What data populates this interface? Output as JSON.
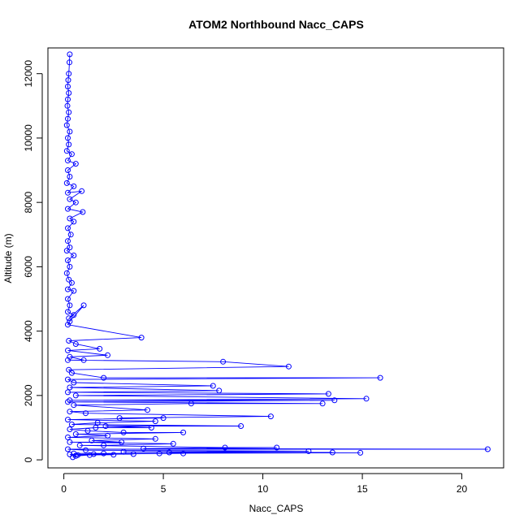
{
  "chart_data": {
    "type": "line",
    "title": "ATOM2 Northbound Nacc_CAPS",
    "xlabel": "Nacc_CAPS",
    "ylabel": "Altitude (m)",
    "xlim": [
      -0.8,
      22.1
    ],
    "ylim": [
      -250,
      12800
    ],
    "xticks": [
      0,
      5,
      10,
      15,
      20
    ],
    "yticks": [
      0,
      2000,
      4000,
      6000,
      8000,
      10000,
      12000
    ],
    "grid": false,
    "legend": "none",
    "color": "#0000ff",
    "series": [
      {
        "marker": "open-circle",
        "points": [
          [
            0.3,
            12600
          ],
          [
            0.28,
            12350
          ],
          [
            0.25,
            12000
          ],
          [
            0.22,
            11800
          ],
          [
            0.2,
            11600
          ],
          [
            0.25,
            11400
          ],
          [
            0.2,
            11200
          ],
          [
            0.18,
            11000
          ],
          [
            0.25,
            10800
          ],
          [
            0.2,
            10600
          ],
          [
            0.15,
            10400
          ],
          [
            0.3,
            10200
          ],
          [
            0.2,
            10000
          ],
          [
            0.25,
            9800
          ],
          [
            0.15,
            9600
          ],
          [
            0.4,
            9500
          ],
          [
            0.2,
            9300
          ],
          [
            0.6,
            9200
          ],
          [
            0.2,
            9000
          ],
          [
            0.3,
            8800
          ],
          [
            0.15,
            8600
          ],
          [
            0.5,
            8500
          ],
          [
            0.2,
            8300
          ],
          [
            0.9,
            8350
          ],
          [
            0.3,
            8100
          ],
          [
            0.6,
            8000
          ],
          [
            0.2,
            7800
          ],
          [
            0.95,
            7700
          ],
          [
            0.3,
            7500
          ],
          [
            0.5,
            7400
          ],
          [
            0.2,
            7200
          ],
          [
            0.35,
            7000
          ],
          [
            0.2,
            6800
          ],
          [
            0.3,
            6600
          ],
          [
            0.15,
            6500
          ],
          [
            0.5,
            6350
          ],
          [
            0.2,
            6200
          ],
          [
            0.3,
            6000
          ],
          [
            0.15,
            5800
          ],
          [
            0.25,
            5600
          ],
          [
            0.4,
            5500
          ],
          [
            0.2,
            5300
          ],
          [
            0.5,
            5250
          ],
          [
            0.2,
            5000
          ],
          [
            0.3,
            4800
          ],
          [
            0.2,
            4600
          ],
          [
            0.5,
            4500
          ],
          [
            0.25,
            4400
          ],
          [
            1.0,
            4800
          ],
          [
            0.3,
            4300
          ],
          [
            0.2,
            4200
          ],
          [
            3.9,
            3800
          ],
          [
            0.25,
            3700
          ],
          [
            0.6,
            3600
          ],
          [
            1.8,
            3450
          ],
          [
            0.2,
            3400
          ],
          [
            2.2,
            3250
          ],
          [
            0.3,
            3200
          ],
          [
            1.0,
            3100
          ],
          [
            0.2,
            3100
          ],
          [
            8.0,
            3050
          ],
          [
            11.3,
            2900
          ],
          [
            0.25,
            2800
          ],
          [
            0.4,
            2700
          ],
          [
            2.0,
            2550
          ],
          [
            15.9,
            2550
          ],
          [
            0.2,
            2500
          ],
          [
            0.5,
            2400
          ],
          [
            7.5,
            2300
          ],
          [
            0.3,
            2250
          ],
          [
            7.8,
            2150
          ],
          [
            0.2,
            2100
          ],
          [
            13.3,
            2050
          ],
          [
            0.6,
            2000
          ],
          [
            15.2,
            1900
          ],
          [
            0.3,
            1850
          ],
          [
            13.6,
            1850
          ],
          [
            0.2,
            1800
          ],
          [
            13.0,
            1750
          ],
          [
            6.4,
            1750
          ],
          [
            0.5,
            1700
          ],
          [
            4.2,
            1550
          ],
          [
            0.3,
            1500
          ],
          [
            1.1,
            1450
          ],
          [
            10.4,
            1350
          ],
          [
            2.8,
            1300
          ],
          [
            5.0,
            1300
          ],
          [
            0.2,
            1250
          ],
          [
            4.6,
            1200
          ],
          [
            1.7,
            1150
          ],
          [
            0.4,
            1100
          ],
          [
            8.9,
            1050
          ],
          [
            2.1,
            1050
          ],
          [
            4.4,
            1000
          ],
          [
            1.6,
            1000
          ],
          [
            0.3,
            950
          ],
          [
            1.2,
            900
          ],
          [
            3.0,
            850
          ],
          [
            6.0,
            850
          ],
          [
            0.6,
            800
          ],
          [
            2.2,
            750
          ],
          [
            0.2,
            700
          ],
          [
            4.6,
            650
          ],
          [
            1.4,
            600
          ],
          [
            2.9,
            550
          ],
          [
            0.3,
            550
          ],
          [
            5.5,
            500
          ],
          [
            2.0,
            450
          ],
          [
            0.8,
            450
          ],
          [
            8.1,
            380
          ],
          [
            10.7,
            380
          ],
          [
            4.0,
            350
          ],
          [
            21.3,
            330
          ],
          [
            0.2,
            330
          ],
          [
            1.1,
            300
          ],
          [
            12.3,
            270
          ],
          [
            3.0,
            250
          ],
          [
            13.5,
            230
          ],
          [
            5.3,
            230
          ],
          [
            14.9,
            220
          ],
          [
            2.0,
            200
          ],
          [
            4.8,
            200
          ],
          [
            0.5,
            200
          ],
          [
            6.0,
            200
          ],
          [
            1.5,
            180
          ],
          [
            3.5,
            180
          ],
          [
            0.3,
            170
          ],
          [
            2.5,
            160
          ],
          [
            0.7,
            150
          ],
          [
            1.3,
            150
          ],
          [
            0.6,
            120
          ],
          [
            0.45,
            80
          ]
        ]
      }
    ]
  }
}
